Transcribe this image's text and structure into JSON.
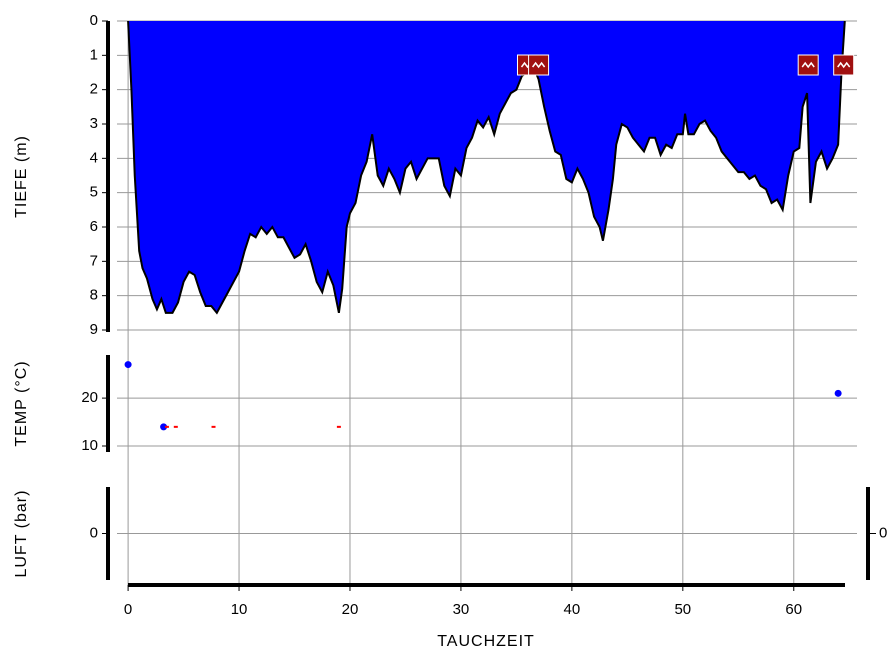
{
  "chart_data": [
    {
      "type": "area",
      "ylabel": "TIEFE (m)",
      "color": "#0000ff",
      "x": [
        0,
        0.3,
        0.6,
        1,
        1.3,
        1.7,
        2.2,
        2.6,
        3,
        3.4,
        4,
        4.5,
        5,
        5.5,
        6,
        6.5,
        7,
        7.5,
        8,
        8.5,
        9,
        9.5,
        10,
        10.5,
        11,
        11.5,
        12,
        12.5,
        13,
        13.5,
        14,
        14.5,
        15,
        15.5,
        16,
        16.5,
        17,
        17.5,
        18,
        18.5,
        19,
        19.3,
        19.7,
        20,
        20.5,
        21,
        21.5,
        22,
        22.5,
        23,
        23.5,
        24,
        24.5,
        25,
        25.5,
        26,
        27,
        28,
        28.5,
        29,
        29.5,
        30,
        30.5,
        31,
        31.5,
        32,
        32.5,
        33,
        33.5,
        34,
        34.5,
        35,
        35.5,
        36,
        36.5,
        37,
        37.5,
        38,
        38.5,
        39,
        39.5,
        40,
        40.5,
        41,
        41.5,
        42,
        42.5,
        42.8,
        43.3,
        43.7,
        44,
        44.5,
        45,
        45.5,
        46,
        46.5,
        47,
        47.5,
        48,
        48.5,
        49,
        49.5,
        50,
        50.2,
        50.5,
        51,
        51.5,
        52,
        52.5,
        53,
        53.5,
        54,
        54.5,
        55,
        55.5,
        56,
        56.5,
        57,
        57.5,
        58,
        58.5,
        59,
        59.5,
        60,
        60.5,
        60.8,
        61.2,
        61.5,
        62,
        62.5,
        63,
        63.5,
        64,
        64.3,
        64.6
      ],
      "values": [
        0,
        2,
        4.5,
        6.7,
        7.2,
        7.5,
        8.1,
        8.4,
        8.1,
        8.5,
        8.5,
        8.2,
        7.6,
        7.3,
        7.4,
        7.9,
        8.3,
        8.3,
        8.5,
        8.2,
        7.9,
        7.6,
        7.3,
        6.7,
        6.2,
        6.3,
        6,
        6.2,
        6,
        6.3,
        6.3,
        6.6,
        6.9,
        6.8,
        6.5,
        7,
        7.6,
        7.9,
        7.3,
        7.7,
        8.5,
        7.8,
        6,
        5.6,
        5.3,
        4.5,
        4.1,
        3.3,
        4.5,
        4.8,
        4.3,
        4.6,
        5,
        4.3,
        4.1,
        4.6,
        4,
        4,
        4.8,
        5.1,
        4.3,
        4.5,
        3.7,
        3.4,
        2.9,
        3.1,
        2.8,
        3.3,
        2.7,
        2.4,
        2.1,
        2,
        1.6,
        1.5,
        1.3,
        1.7,
        2.5,
        3.2,
        3.8,
        3.9,
        4.6,
        4.7,
        4.3,
        4.6,
        5,
        5.7,
        6,
        6.4,
        5.5,
        4.6,
        3.6,
        3,
        3.1,
        3.4,
        3.6,
        3.8,
        3.4,
        3.4,
        3.9,
        3.6,
        3.7,
        3.3,
        3.3,
        2.7,
        3.3,
        3.3,
        3,
        2.9,
        3.2,
        3.4,
        3.8,
        4,
        4.2,
        4.4,
        4.4,
        4.6,
        4.5,
        4.8,
        4.9,
        5.3,
        5.2,
        5.5,
        4.5,
        3.8,
        3.7,
        2.5,
        2.1,
        5.3,
        4.1,
        3.8,
        4.3,
        4,
        3.6,
        1.5,
        0
      ],
      "events": [
        36,
        37,
        61.3,
        64.5
      ],
      "ylim": [
        9,
        0
      ],
      "yticks": [
        0,
        1,
        2,
        3,
        4,
        5,
        6,
        7,
        8,
        9
      ],
      "xlim": [
        -1,
        65.7
      ]
    },
    {
      "type": "scatter",
      "ylabel": "TEMP (°C)",
      "series": [
        {
          "color": "#0000ff",
          "x": [
            0,
            3.2,
            64
          ],
          "values": [
            27,
            14,
            21
          ]
        },
        {
          "color": "#ff0000",
          "x": [
            3.5,
            4.3,
            7.7,
            19
          ],
          "values": [
            14,
            14,
            14,
            14
          ]
        }
      ],
      "ylim": [
        8.75,
        29
      ],
      "yticks": [
        10,
        20
      ],
      "xlim": [
        -1,
        65.7
      ]
    },
    {
      "type": "line",
      "ylabel": "LUFT (bar)",
      "xlabel": "TAUCHZEIT",
      "ylim": [
        -1,
        1
      ],
      "yticks": [
        0
      ],
      "y2lim": [
        -1,
        1
      ],
      "y2ticks": [
        0
      ],
      "xlim": [
        -1,
        65.7
      ],
      "xticks": [
        0,
        10,
        20,
        30,
        40,
        50,
        60
      ]
    }
  ]
}
